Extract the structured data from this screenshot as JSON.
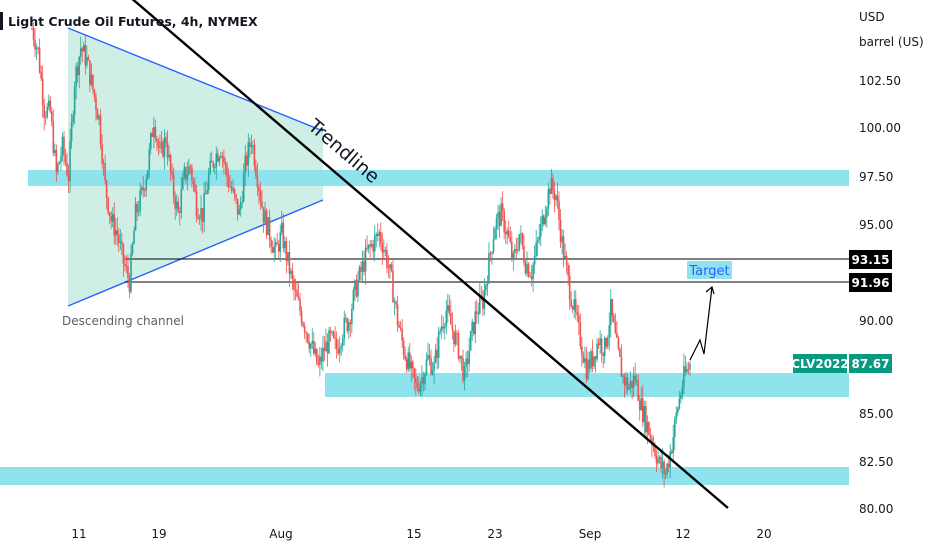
{
  "chart_title": "Light Crude Oil Futures, 4h, NYMEX",
  "price_scale": {
    "currency": "USD",
    "unit": "barrel (US)",
    "tick_labels": [
      "102.50",
      "100.00",
      "97.50",
      "95.00",
      "90.00",
      "85.00",
      "82.50",
      "80.00"
    ]
  },
  "time_scale": {
    "tick_labels": [
      "11",
      "19",
      "Aug",
      "15",
      "23",
      "Sep",
      "12",
      "20"
    ]
  },
  "levels": {
    "upper_label": "93.15",
    "lower_label": "91.96",
    "last_price_symbol": "CLV2022",
    "last_price_label": "87.67"
  },
  "annotations": {
    "trendline_label": "Trendline",
    "channel_label": "Descending channel",
    "target_label": "Target"
  },
  "colors": {
    "up": "#26a69a",
    "down": "#ef5350",
    "zone": "#8fe3ec",
    "triangle_fill": "#cfeee6",
    "last_price_box": "#089981",
    "level_box": "#000000"
  },
  "chart_data": {
    "type": "candlestick",
    "title": "Light Crude Oil Futures, 4h, NYMEX",
    "ylabel": "USD barrel (US)",
    "ylim": [
      79.8,
      104.5
    ],
    "x_ticks": [
      "11",
      "19",
      "Aug",
      "15",
      "23",
      "Sep",
      "12",
      "20"
    ],
    "horizontal_levels": [
      93.15,
      91.96
    ],
    "last_price": 87.67,
    "support_resistance_zones": [
      [
        96.9,
        97.7
      ],
      [
        86.0,
        87.2
      ],
      [
        81.4,
        82.4
      ]
    ],
    "trendline": {
      "start_price": 105.5,
      "end_price": 80.4
    },
    "path_closes": [
      105.2,
      104.0,
      101.0,
      100.8,
      97.6,
      99.0,
      97.5,
      102.5,
      104.2,
      103.5,
      102.0,
      100.5,
      97.0,
      95.2,
      94.5,
      93.0,
      92.0,
      95.5,
      96.5,
      98.0,
      100.5,
      98.5,
      99.5,
      97.0,
      95.5,
      97.5,
      98.0,
      96.0,
      95.5,
      97.5,
      98.5,
      99.0,
      97.5,
      96.5,
      95.5,
      98.0,
      99.5,
      97.5,
      95.5,
      94.5,
      93.5,
      94.5,
      93.0,
      91.5,
      90.5,
      89.5,
      88.5,
      87.5,
      88.5,
      89.0,
      88.5,
      89.5,
      90.0,
      91.5,
      92.5,
      93.5,
      94.0,
      94.5,
      93.5,
      92.0,
      90.0,
      88.5,
      87.5,
      86.5,
      87.0,
      88.0,
      87.5,
      89.5,
      90.5,
      89.5,
      88.5,
      87.0,
      89.0,
      90.5,
      91.0,
      93.0,
      95.0,
      95.5,
      94.5,
      93.0,
      94.5,
      93.0,
      92.5,
      94.0,
      95.5,
      97.0,
      96.5,
      94.0,
      92.0,
      90.5,
      89.0,
      87.5,
      88.0,
      89.0,
      88.5,
      90.5,
      88.5,
      87.0,
      86.5,
      87.0,
      85.5,
      84.5,
      83.5,
      82.5,
      82.0,
      83.5,
      85.5,
      87.0,
      87.67
    ]
  }
}
